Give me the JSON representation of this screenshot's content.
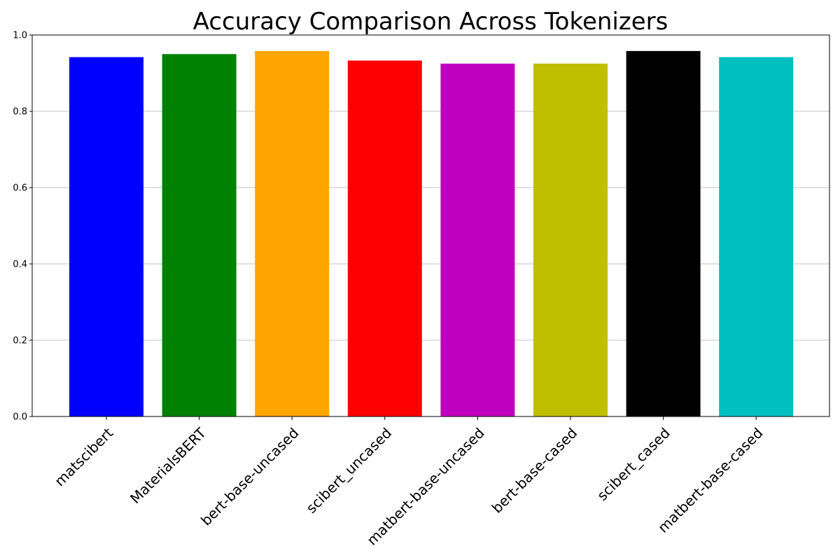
{
  "chart_data": {
    "type": "bar",
    "title": "Accuracy Comparison Across Tokenizers",
    "xlabel": "",
    "ylabel": "",
    "categories": [
      "matscibert",
      "MaterialsBERT",
      "bert-base-uncased",
      "scibert_uncased",
      "matbert-base-uncased",
      "bert-base-cased",
      "scibert_cased",
      "matbert-base-cased"
    ],
    "values": [
      0.942,
      0.95,
      0.958,
      0.933,
      0.925,
      0.925,
      0.958,
      0.942
    ],
    "colors": [
      "#0000ff",
      "#008000",
      "#ffa500",
      "#ff0000",
      "#bf00bf",
      "#bfbf00",
      "#000000",
      "#00bfbf"
    ],
    "ylim": [
      0,
      1.0
    ],
    "yticks": [
      0.0,
      0.2,
      0.4,
      0.6,
      0.8,
      1.0
    ],
    "ytick_labels": [
      "0.0",
      "0.2",
      "0.4",
      "0.6",
      "0.8",
      "1.0"
    ],
    "grid": "y",
    "legend": "none"
  }
}
